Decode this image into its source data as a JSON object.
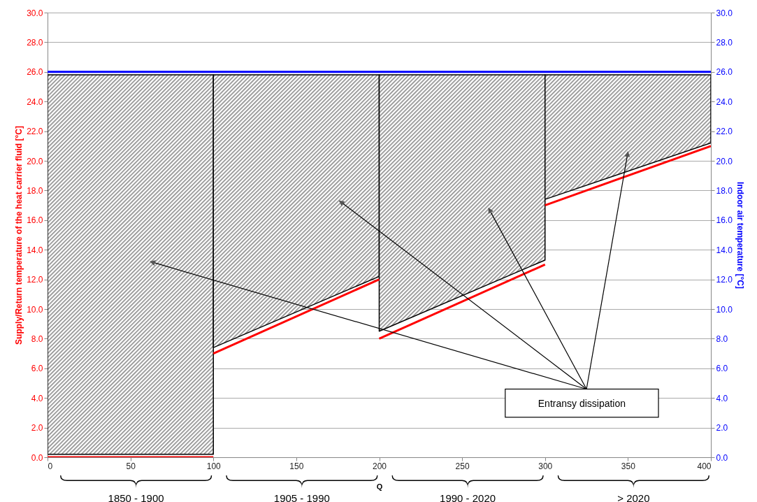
{
  "chart_data": {
    "type": "line",
    "xlabel": "Q",
    "ylabel": "Supply/Return temperature of the heat carrier fluid [°C]",
    "y2label": "Indoor air temperature [°C]",
    "xlim": [
      0,
      400
    ],
    "xticks": [
      0,
      50,
      100,
      150,
      200,
      250,
      300,
      350,
      400
    ],
    "ylim": [
      0,
      30
    ],
    "yticks": [
      {
        "value": 0,
        "label": "0.0"
      },
      {
        "value": 2,
        "label": "2.0"
      },
      {
        "value": 4,
        "label": "4.0"
      },
      {
        "value": 6,
        "label": "6.0"
      },
      {
        "value": 8,
        "label": "8.0"
      },
      {
        "value": 10,
        "label": "10.0"
      },
      {
        "value": 12,
        "label": "12.0"
      },
      {
        "value": 14,
        "label": "14.0"
      },
      {
        "value": 16,
        "label": "16.0"
      },
      {
        "value": 18,
        "label": "18.0"
      },
      {
        "value": 20,
        "label": "20.0"
      },
      {
        "value": 22,
        "label": "22.0"
      },
      {
        "value": 24,
        "label": "24.0"
      },
      {
        "value": 26,
        "label": "26.0"
      },
      {
        "value": 28,
        "label": "28.0"
      },
      {
        "value": 30,
        "label": "30.0"
      }
    ],
    "y2lim": [
      0,
      30
    ],
    "y2ticks": [
      {
        "value": 0,
        "label": "0.0"
      },
      {
        "value": 2,
        "label": "2.0"
      },
      {
        "value": 4,
        "label": "4.0"
      },
      {
        "value": 6,
        "label": "6.0"
      },
      {
        "value": 8,
        "label": "8.0"
      },
      {
        "value": 10,
        "label": "10.0"
      },
      {
        "value": 12,
        "label": "12.0"
      },
      {
        "value": 14,
        "label": "14.0"
      },
      {
        "value": 16,
        "label": "16.0"
      },
      {
        "value": 18,
        "label": "18.0"
      },
      {
        "value": 20,
        "label": "20.0"
      },
      {
        "value": 22,
        "label": "22.0"
      },
      {
        "value": 24,
        "label": "24.0"
      },
      {
        "value": 26,
        "label": "26.0"
      },
      {
        "value": 28,
        "label": "28.0"
      },
      {
        "value": 30,
        "label": "30.0"
      }
    ],
    "grid": "y",
    "marker": "none",
    "line_style": "solid",
    "series": [
      {
        "x": [
          0,
          100
        ],
        "values": [
          0,
          0
        ],
        "lower": [
          0.2,
          0.2
        ],
        "upper": [
          25.8,
          25.8
        ],
        "color": "#ff0000"
      },
      {
        "x": [
          100,
          200
        ],
        "values": [
          7,
          12
        ],
        "lower": [
          7.4,
          12.2
        ],
        "upper": [
          25.8,
          25.8
        ],
        "color": "#ff0000"
      },
      {
        "x": [
          200,
          300
        ],
        "values": [
          8,
          13
        ],
        "lower": [
          8.5,
          13.3
        ],
        "upper": [
          25.8,
          25.8
        ],
        "color": "#ff0000"
      },
      {
        "x": [
          300,
          400
        ],
        "values": [
          17,
          21
        ],
        "lower": [
          17.4,
          21.2
        ],
        "upper": [
          25.8,
          25.8
        ],
        "color": "#ff0000"
      },
      {
        "axis": "y2",
        "x": [
          0,
          400
        ],
        "values": [
          26,
          26
        ],
        "color": "#0000ff"
      }
    ],
    "annotations": [
      "Entransy dissipation",
      "1850 - 1900",
      "1905 - 1990",
      "1990 - 2020",
      "> 2020"
    ]
  }
}
